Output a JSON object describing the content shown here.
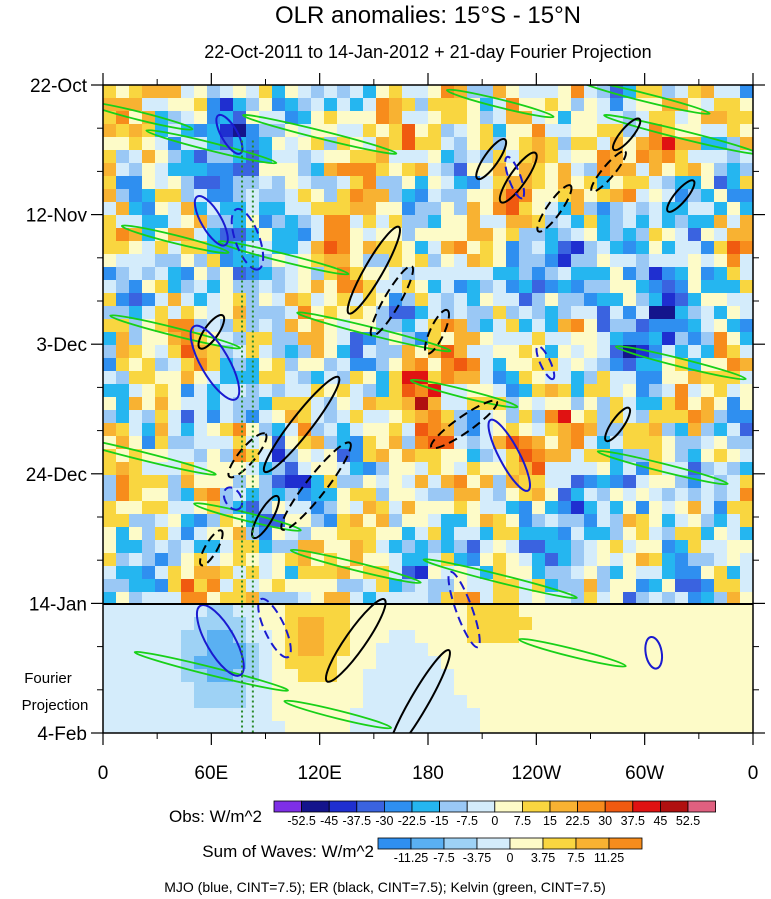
{
  "chart_data": {
    "type": "heatmap",
    "title": "OLR anomalies: 15°S - 15°N",
    "subtitle": "22-Oct-2011 to 14-Jan-2012 + 21-day Fourier Projection",
    "x_ticks": [
      "0",
      "60E",
      "120E",
      "180",
      "120W",
      "60W",
      "0"
    ],
    "y_ticks": [
      "22-Oct",
      "12-Nov",
      "3-Dec",
      "24-Dec",
      "14-Jan",
      "4-Feb"
    ],
    "projection_label": [
      "Fourier",
      "Projection"
    ],
    "xlim": [
      0,
      360
    ],
    "ylim": [
      "22-Oct-2011",
      "4-Feb-2012"
    ],
    "projection_start": "14-Jan-2012",
    "obs_colorbar": {
      "label": "Obs: W/m^2",
      "levels": [
        "-52.5",
        "-45",
        "-37.5",
        "-30",
        "-22.5",
        "-15",
        "-7.5",
        "0",
        "7.5",
        "15",
        "22.5",
        "30",
        "37.5",
        "45",
        "52.5"
      ],
      "colors": [
        "#7e2fe6",
        "#14148c",
        "#1f2fd0",
        "#3a63e0",
        "#2f8ff0",
        "#25b6f0",
        "#9ac8f5",
        "#d4ecfb",
        "#fdfbc8",
        "#f9d640",
        "#f8b232",
        "#f78c1c",
        "#f05a10",
        "#e01212",
        "#b01010",
        "#e06080"
      ]
    },
    "waves_colorbar": {
      "label": "Sum of Waves: W/m^2",
      "levels": [
        "-11.25",
        "-7.5",
        "-3.75",
        "0",
        "3.75",
        "7.5",
        "11.25"
      ],
      "colors": [
        "#2f8ff0",
        "#5ab0f2",
        "#9ed2f5",
        "#d4ecfb",
        "#fdfbc8",
        "#f9d640",
        "#f8b232",
        "#f78c1c"
      ]
    },
    "contour_legend": "MJO (blue, CINT=7.5); ER (black, CINT=7.5); Kelvin (green, CINT=7.5)",
    "contour_colors": {
      "MJO": "#1a1ad0",
      "ER": "#000000",
      "Kelvin": "#18d018"
    },
    "reference_lines": [
      {
        "type": "dotted",
        "color": "#2a8a2a",
        "lon": 77
      },
      {
        "type": "dotted",
        "color": "#2a8a2a",
        "lon": 83
      }
    ]
  }
}
